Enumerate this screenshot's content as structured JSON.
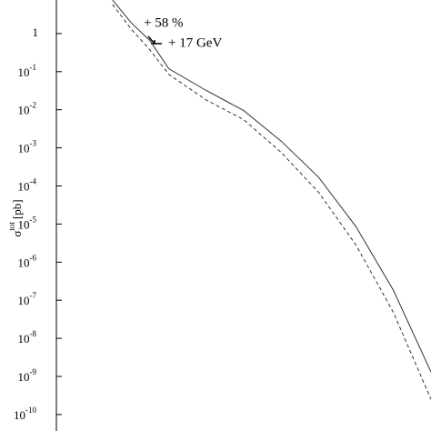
{
  "chart_data": {
    "type": "line",
    "ylabel": {
      "text": "σ",
      "sup": "tot",
      "unit": "[pb]"
    },
    "annotations": [
      "+ 58 %",
      "+ 17 GeV"
    ],
    "log_y": true,
    "xlim": [
      0,
      1
    ],
    "ylim": [
      3.7e-11,
      7.6
    ],
    "yticks": [
      1,
      {
        "value": 0.1,
        "label": "10",
        "sup": "-1"
      },
      {
        "value": 0.01,
        "label": "10",
        "sup": "-2"
      },
      {
        "value": 0.001,
        "label": "10",
        "sup": "-3"
      },
      {
        "value": 0.0001,
        "label": "10",
        "sup": "-4"
      },
      {
        "value": 1e-05,
        "label": "10",
        "sup": "-5"
      },
      {
        "value": 1e-06,
        "label": "10",
        "sup": "-6"
      },
      {
        "value": 1e-07,
        "label": "10",
        "sup": "-7"
      },
      {
        "value": 1e-08,
        "label": "10",
        "sup": "-8"
      },
      {
        "value": 1e-09,
        "label": "10",
        "sup": "-9"
      },
      {
        "value": 1e-10,
        "label": "10",
        "sup": "-10"
      }
    ],
    "x": [
      0.15,
      0.2,
      0.25,
      0.3,
      0.4,
      0.5,
      0.6,
      0.7,
      0.8,
      0.9,
      1.0
    ],
    "series": [
      {
        "style": "solid",
        "color": "#333333",
        "values": [
          7.6,
          1.9,
          0.65,
          0.12,
          0.032,
          0.0095,
          0.0015,
          0.00017,
          8.5e-06,
          1.8e-07,
          1.3e-09
        ]
      },
      {
        "style": "dashed",
        "color": "#333333",
        "values": [
          5.8,
          1.3,
          0.37,
          0.085,
          0.018,
          0.0055,
          0.00076,
          6.8e-05,
          2.8e-06,
          4.7e-08,
          2.5e-10
        ]
      }
    ]
  }
}
